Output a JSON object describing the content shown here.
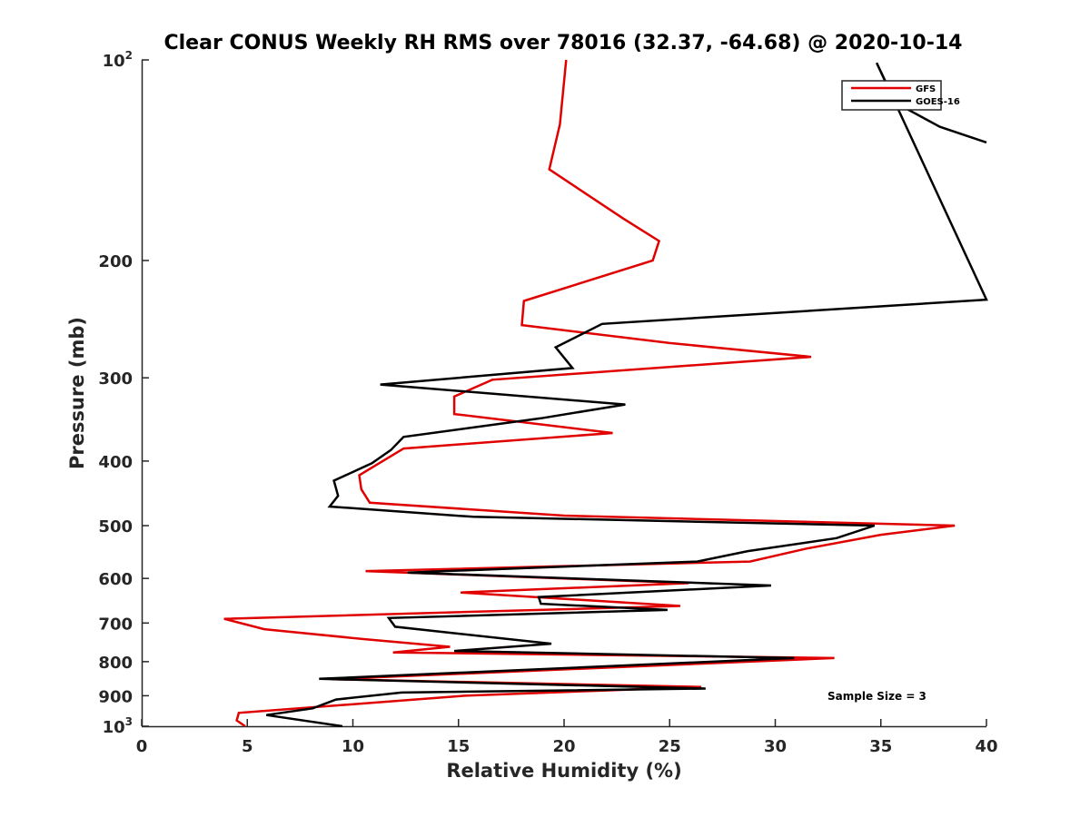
{
  "chart_data": {
    "type": "line",
    "title": "Clear CONUS Weekly RH RMS over 78016 (32.37, -64.68) @ 2020-10-14",
    "xlabel": "Relative Humidity (%)",
    "ylabel": "Pressure (mb)",
    "xlim": [
      0,
      40
    ],
    "ylim": [
      100,
      1000
    ],
    "y_scale": "log",
    "y_reversed": true,
    "x_ticks": [
      0,
      5,
      10,
      15,
      20,
      25,
      30,
      35,
      40
    ],
    "y_ticks": [
      {
        "value": 100,
        "label": "10",
        "sup": "2"
      },
      {
        "value": 200,
        "label": "200",
        "sup": ""
      },
      {
        "value": 300,
        "label": "300",
        "sup": ""
      },
      {
        "value": 400,
        "label": "400",
        "sup": ""
      },
      {
        "value": 500,
        "label": "500",
        "sup": ""
      },
      {
        "value": 600,
        "label": "600",
        "sup": ""
      },
      {
        "value": 700,
        "label": "700",
        "sup": ""
      },
      {
        "value": 800,
        "label": "800",
        "sup": ""
      },
      {
        "value": 900,
        "label": "900",
        "sup": ""
      },
      {
        "value": 1000,
        "label": "10",
        "sup": "3"
      }
    ],
    "legend_position": "top-right",
    "annotation": "Sample Size = 3",
    "series": [
      {
        "name": "GFS",
        "color": "#e00000",
        "points": [
          [
            20.1,
            100
          ],
          [
            19.8,
            125
          ],
          [
            19.3,
            146
          ],
          [
            22.8,
            173
          ],
          [
            24.5,
            187
          ],
          [
            24.2,
            200
          ],
          [
            18.1,
            230
          ],
          [
            18.0,
            250
          ],
          [
            25.0,
            266
          ],
          [
            31.7,
            279
          ],
          [
            16.6,
            302
          ],
          [
            14.8,
            320
          ],
          [
            14.8,
            340
          ],
          [
            22.3,
            363
          ],
          [
            12.4,
            383
          ],
          [
            10.3,
            420
          ],
          [
            10.4,
            441
          ],
          [
            10.8,
            462
          ],
          [
            20.0,
            483
          ],
          [
            38.5,
            500
          ],
          [
            35.0,
            516
          ],
          [
            31.5,
            541
          ],
          [
            28.8,
            566
          ],
          [
            10.6,
            585
          ],
          [
            25.9,
            610
          ],
          [
            15.1,
            630
          ],
          [
            25.5,
            660
          ],
          [
            3.9,
            690
          ],
          [
            5.8,
            715
          ],
          [
            10.5,
            740
          ],
          [
            14.6,
            760
          ],
          [
            11.9,
            775
          ],
          [
            32.8,
            790
          ],
          [
            9.0,
            850
          ],
          [
            26.5,
            873
          ],
          [
            15.3,
            900
          ],
          [
            4.6,
            955
          ],
          [
            4.5,
            980
          ],
          [
            4.9,
            1000
          ]
        ]
      },
      {
        "name": "GOES-16",
        "color": "#000000",
        "points": [
          [
            40.0,
            133
          ],
          [
            37.8,
            126
          ],
          [
            35.7,
            116
          ],
          [
            34.8,
            101
          ],
          [
            40.0,
            229
          ],
          [
            21.8,
            249
          ],
          [
            19.6,
            270
          ],
          [
            20.4,
            290
          ],
          [
            11.3,
            307
          ],
          [
            22.9,
            329
          ],
          [
            18.9,
            345
          ],
          [
            12.4,
            368
          ],
          [
            11.8,
            385
          ],
          [
            10.9,
            403
          ],
          [
            9.1,
            428
          ],
          [
            9.3,
            451
          ],
          [
            8.9,
            468
          ],
          [
            15.7,
            485
          ],
          [
            34.7,
            500
          ],
          [
            32.9,
            522
          ],
          [
            28.7,
            546
          ],
          [
            26.3,
            566
          ],
          [
            12.6,
            588
          ],
          [
            29.8,
            615
          ],
          [
            18.8,
            640
          ],
          [
            18.9,
            655
          ],
          [
            24.9,
            669
          ],
          [
            11.7,
            688
          ],
          [
            12.0,
            709
          ],
          [
            19.4,
            752
          ],
          [
            14.8,
            771
          ],
          [
            30.9,
            790
          ],
          [
            8.4,
            849
          ],
          [
            26.7,
            878
          ],
          [
            12.3,
            890
          ],
          [
            9.2,
            912
          ],
          [
            8.1,
            940
          ],
          [
            5.9,
            962
          ],
          [
            9.5,
            1000
          ]
        ]
      }
    ]
  }
}
